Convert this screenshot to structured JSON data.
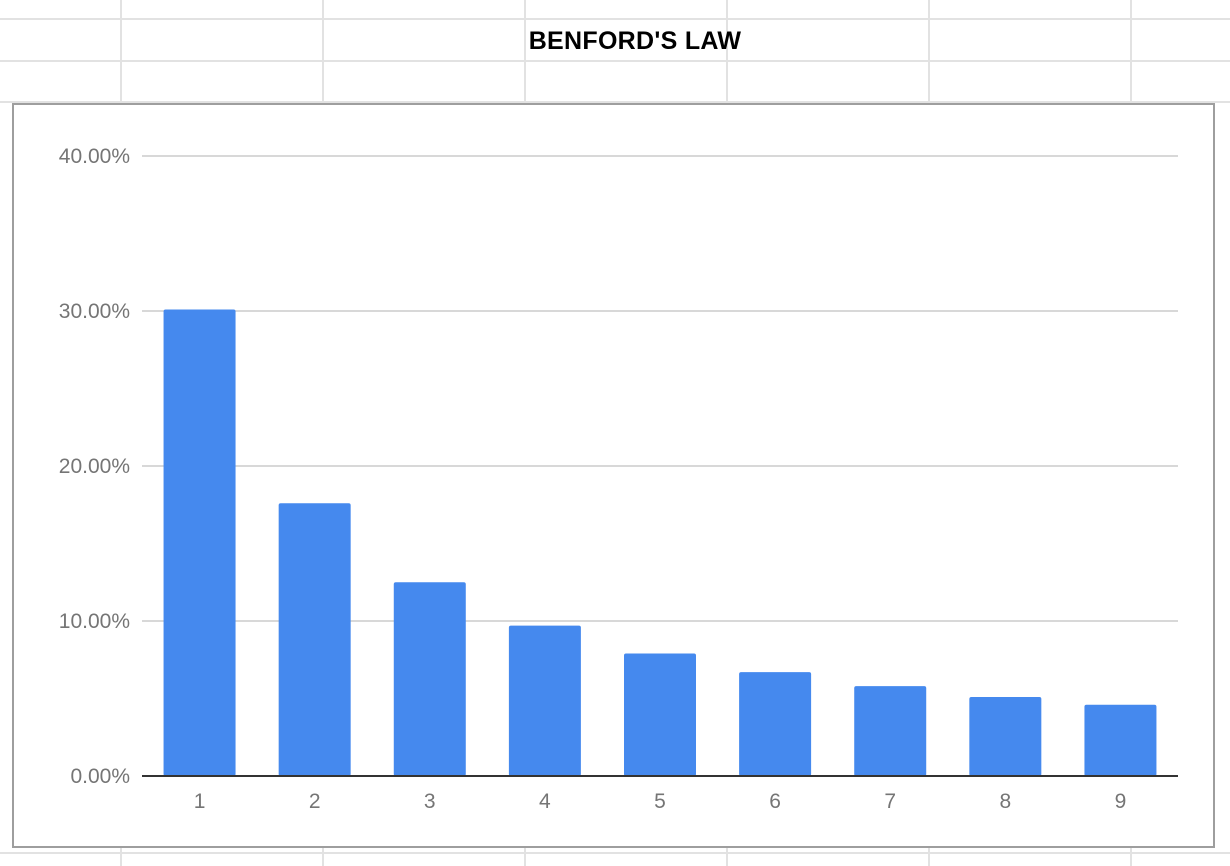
{
  "sheet_title": "BENFORD'S LAW",
  "colors": {
    "bar": "#4589ee",
    "gridline": "#cccccc",
    "axis": "#333333",
    "tick_text": "#757575",
    "sheet_grid": "#e2e2e2"
  },
  "chart_data": {
    "type": "bar",
    "title": "",
    "xlabel": "",
    "ylabel": "",
    "categories": [
      "1",
      "2",
      "3",
      "4",
      "5",
      "6",
      "7",
      "8",
      "9"
    ],
    "values": [
      30.1,
      17.6,
      12.5,
      9.7,
      7.9,
      6.7,
      5.8,
      5.1,
      4.6
    ],
    "ylim": [
      0,
      40
    ],
    "y_ticks": [
      0,
      10,
      20,
      30,
      40
    ],
    "y_tick_labels": [
      "0.00%",
      "10.00%",
      "20.00%",
      "30.00%",
      "40.00%"
    ],
    "grid": true,
    "legend": "none"
  }
}
